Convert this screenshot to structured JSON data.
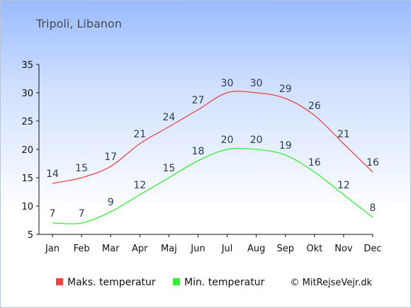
{
  "chart_data": {
    "type": "line",
    "title": "Tripoli, Libanon",
    "xlabel": "",
    "ylabel": "",
    "categories": [
      "Jan",
      "Feb",
      "Mar",
      "Apr",
      "Maj",
      "Jun",
      "Jul",
      "Aug",
      "Sep",
      "Okt",
      "Nov",
      "Dec"
    ],
    "series": [
      {
        "name": "Maks. temperatur",
        "color": "#ee4444",
        "values": [
          14,
          15,
          17,
          21,
          24,
          27,
          30,
          30,
          29,
          26,
          21,
          16
        ]
      },
      {
        "name": "Min. temperatur",
        "color": "#33ee33",
        "values": [
          7,
          7,
          9,
          12,
          15,
          18,
          20,
          20,
          19,
          16,
          12,
          8
        ]
      }
    ],
    "ylim": [
      5,
      35
    ],
    "yticks": [
      5,
      10,
      15,
      20,
      25,
      30,
      35
    ],
    "grid": false,
    "legend": "bottom",
    "label_color": "#2a3a55"
  },
  "copyright": "© MitRejseVejr.dk"
}
